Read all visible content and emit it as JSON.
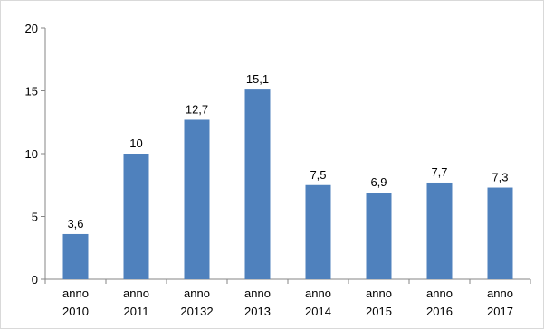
{
  "chart_data": {
    "type": "bar",
    "title": "",
    "xlabel": "",
    "ylabel": "",
    "categories": [
      [
        "anno",
        "2010"
      ],
      [
        "anno",
        "2011"
      ],
      [
        "anno",
        "20132"
      ],
      [
        "anno",
        "2013"
      ],
      [
        "anno",
        "2014"
      ],
      [
        "anno",
        "2015"
      ],
      [
        "anno",
        "2016"
      ],
      [
        "anno",
        "2017"
      ]
    ],
    "values": [
      3.6,
      10,
      12.7,
      15.1,
      7.5,
      6.9,
      7.7,
      7.3
    ],
    "value_labels": [
      "3,6",
      "10",
      "12,7",
      "15,1",
      "7,5",
      "6,9",
      "7,7",
      "7,3"
    ],
    "ylim": [
      0,
      20
    ],
    "yticks": [
      0,
      5,
      10,
      15,
      20
    ],
    "ytick_labels": [
      "0",
      "5",
      "10",
      "15",
      "20"
    ],
    "grid": false,
    "legend": "none",
    "bar_color": "#4f81bd"
  }
}
